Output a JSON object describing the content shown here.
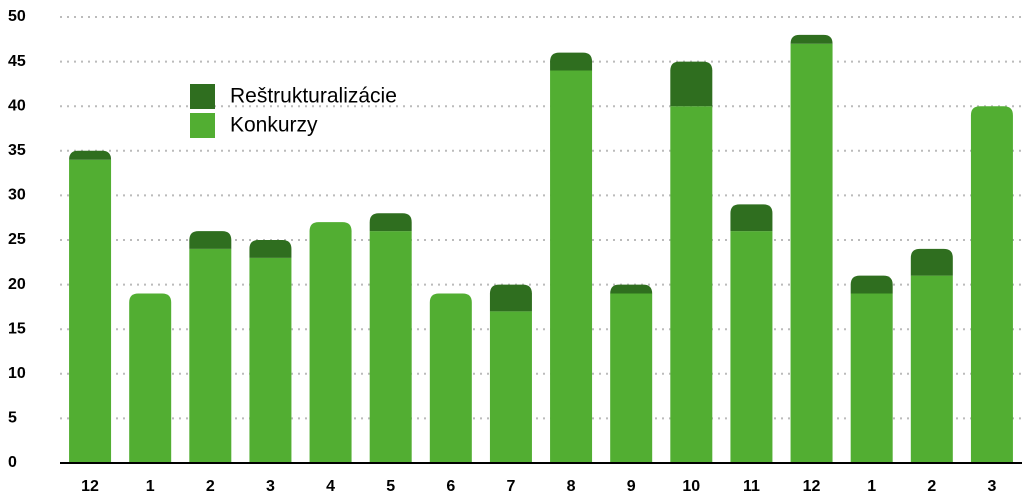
{
  "chart_data": {
    "type": "stacked-bar",
    "categories": [
      "12",
      "1",
      "2",
      "3",
      "4",
      "5",
      "6",
      "7",
      "8",
      "9",
      "10",
      "11",
      "12",
      "1",
      "2",
      "3"
    ],
    "series": [
      {
        "name": "Konkurzy",
        "color": "#52ae32",
        "values": [
          34,
          19,
          24,
          23,
          27,
          26,
          19,
          17,
          44,
          19,
          40,
          26,
          47,
          19,
          21,
          40
        ]
      },
      {
        "name": "Reštrukturalizácie",
        "color": "#2f6e1f",
        "values": [
          1,
          0,
          2,
          2,
          0,
          2,
          0,
          3,
          2,
          1,
          5,
          3,
          1,
          2,
          3,
          0
        ]
      }
    ],
    "ylim": [
      0,
      50
    ],
    "yticks": [
      0,
      5,
      10,
      15,
      20,
      25,
      30,
      35,
      40,
      45,
      50
    ],
    "grid": true
  }
}
